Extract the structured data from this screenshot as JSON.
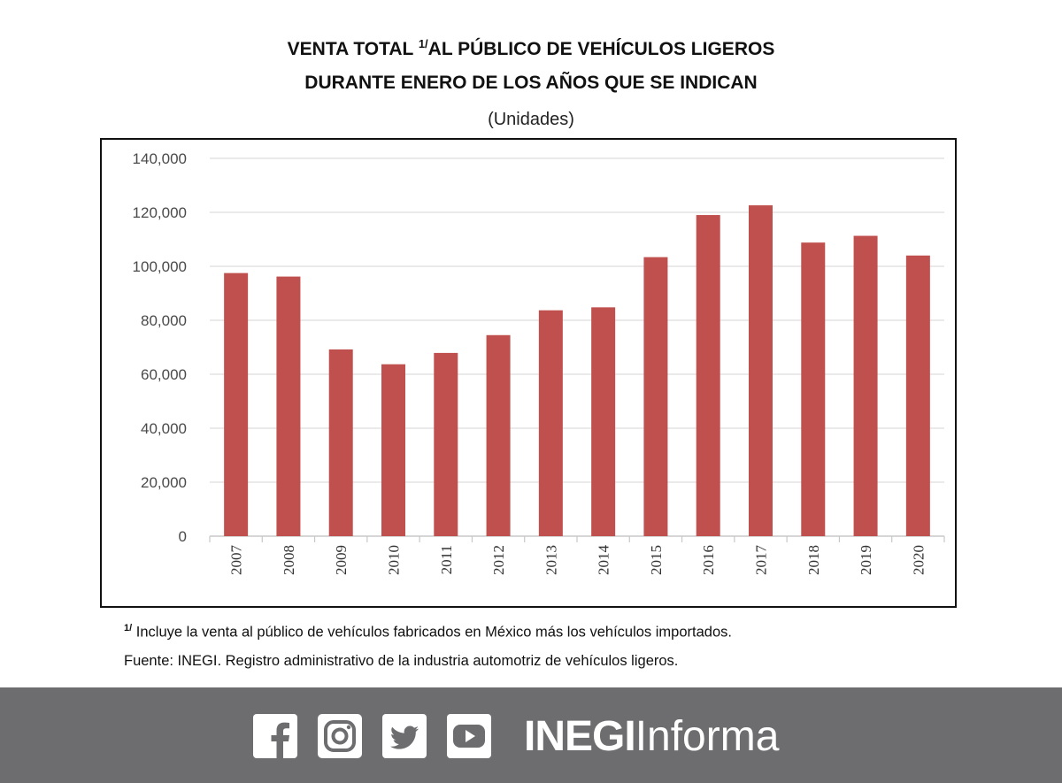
{
  "header": {
    "title_line1_a": "VENTA TOTAL ",
    "title_sup": "1/",
    "title_line1_b": "AL PÚBLICO DE VEHÍCULOS LIGEROS",
    "title_line2": "DURANTE ENERO DE LOS AÑOS QUE SE INDICAN",
    "subtitle": "(Unidades)"
  },
  "chart_data": {
    "type": "bar",
    "title": "VENTA TOTAL 1/ AL PÚBLICO DE VEHÍCULOS LIGEROS DURANTE ENERO DE LOS AÑOS QUE SE INDICAN",
    "ylabel": "(Unidades)",
    "xlabel": "",
    "categories": [
      "2007",
      "2008",
      "2009",
      "2010",
      "2011",
      "2012",
      "2013",
      "2014",
      "2015",
      "2016",
      "2017",
      "2018",
      "2019",
      "2020"
    ],
    "values": [
      97500,
      96200,
      69200,
      63700,
      67900,
      74500,
      83700,
      84800,
      103400,
      119000,
      122600,
      108800,
      111300,
      104000
    ],
    "ylim": [
      0,
      140000
    ],
    "yticks": [
      0,
      20000,
      40000,
      60000,
      80000,
      100000,
      120000,
      140000
    ],
    "ytick_labels": [
      "0",
      "20,000",
      "40,000",
      "60,000",
      "80,000",
      "100,000",
      "120,000",
      "140,000"
    ],
    "grid": true,
    "bar_color": "#c0504d"
  },
  "notes": {
    "footnote_sup": "1/",
    "footnote": " Incluye la venta al público de vehículos fabricados en México más los vehículos importados.",
    "source": "Fuente: INEGI. Registro administrativo de la industria automotriz de vehículos ligeros."
  },
  "footer": {
    "icons": [
      "facebook-icon",
      "instagram-icon",
      "twitter-icon",
      "youtube-icon"
    ],
    "brand_bold": "INEGI",
    "brand_light": "Informa",
    "background": "#6d6d6f"
  }
}
